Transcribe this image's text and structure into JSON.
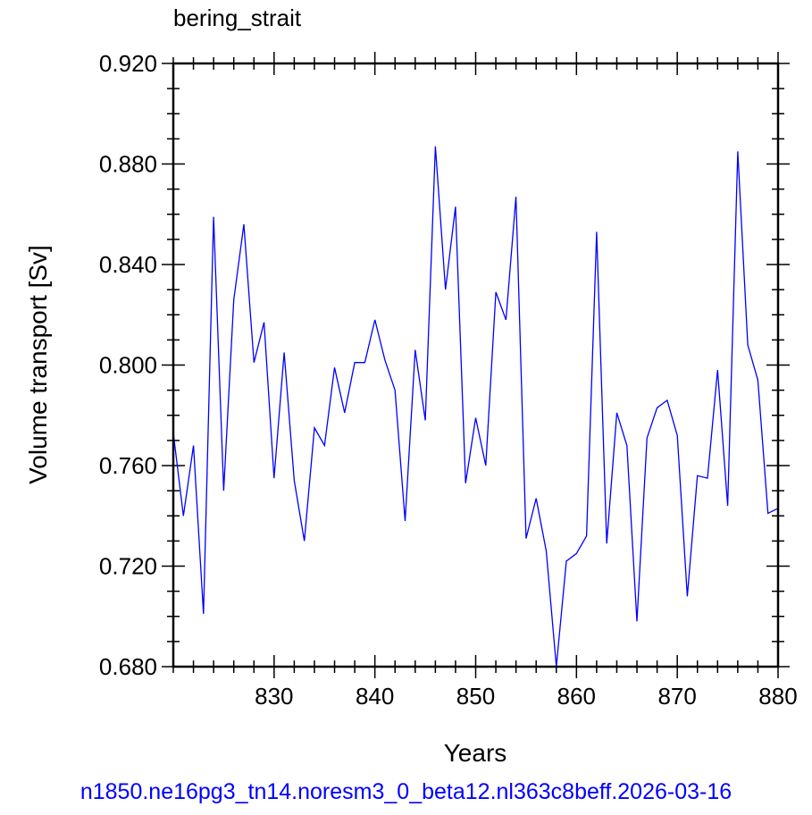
{
  "chart_data": {
    "type": "line",
    "title": "bering_strait",
    "xlabel": "Years",
    "ylabel": "Volume transport [Sv]",
    "xlim": [
      820,
      880
    ],
    "ylim": [
      0.68,
      0.92
    ],
    "xticks": [
      830,
      840,
      850,
      860,
      870,
      880
    ],
    "xtick_labels": [
      "830",
      "840",
      "850",
      "860",
      "870",
      "880"
    ],
    "yticks": [
      0.68,
      0.72,
      0.76,
      0.8,
      0.84,
      0.88,
      0.92
    ],
    "ytick_labels": [
      "0.680",
      "0.720",
      "0.760",
      "0.800",
      "0.840",
      "0.880",
      "0.920"
    ],
    "line_color": "#0000ff",
    "series": [
      {
        "x": [
          820,
          821,
          822,
          823,
          824,
          825,
          826,
          827,
          828,
          829,
          830,
          831,
          832,
          833,
          834,
          835,
          836,
          837,
          838,
          839,
          840,
          841,
          842,
          843,
          844,
          845,
          846,
          847,
          848,
          849,
          850,
          851,
          852,
          853,
          854,
          855,
          856,
          857,
          858,
          859,
          860,
          861,
          862,
          863,
          864,
          865,
          866,
          867,
          868,
          869,
          870,
          871,
          872,
          873,
          874,
          875,
          876,
          877,
          878,
          879,
          880
        ],
        "values": [
          0.773,
          0.74,
          0.768,
          0.701,
          0.859,
          0.75,
          0.826,
          0.856,
          0.801,
          0.817,
          0.755,
          0.805,
          0.754,
          0.73,
          0.775,
          0.768,
          0.799,
          0.781,
          0.801,
          0.801,
          0.818,
          0.802,
          0.79,
          0.738,
          0.806,
          0.778,
          0.887,
          0.83,
          0.863,
          0.753,
          0.779,
          0.76,
          0.829,
          0.818,
          0.867,
          0.731,
          0.747,
          0.726,
          0.68,
          0.722,
          0.725,
          0.732,
          0.853,
          0.729,
          0.781,
          0.768,
          0.698,
          0.771,
          0.783,
          0.786,
          0.772,
          0.708,
          0.756,
          0.755,
          0.798,
          0.744,
          0.885,
          0.808,
          0.794,
          0.741,
          0.743
        ]
      }
    ]
  },
  "footer": {
    "text": "n1850.ne16pg3_tn14.noresm3_0_beta12.nl363c8beff.2026-03-16",
    "color": "#0000ff"
  }
}
